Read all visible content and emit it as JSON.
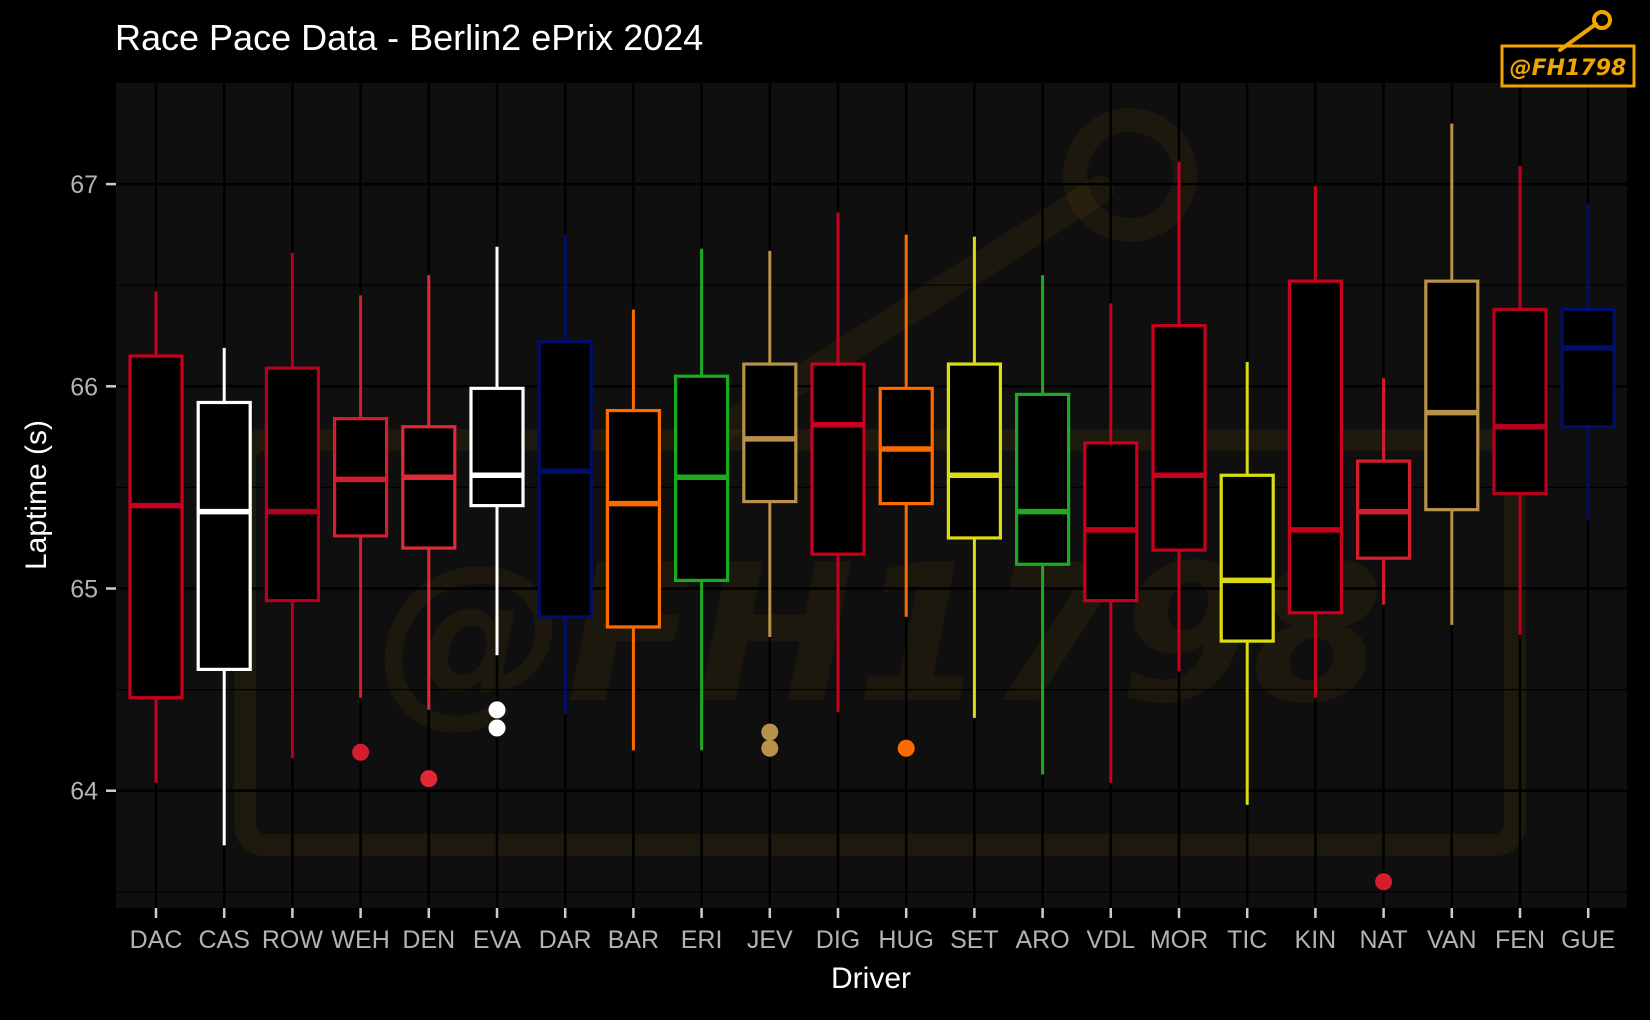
{
  "chart_data": {
    "type": "box",
    "title": "Race Pace Data - Berlin2 ePrix 2024",
    "xlabel": "Driver",
    "ylabel": "Laptime (s)",
    "ylim": [
      63.42,
      67.5
    ],
    "yticks": [
      64,
      65,
      66,
      67
    ],
    "grid": true,
    "legend": "none",
    "watermark": "@FH1798",
    "colors": {
      "background": "#000000",
      "panel": "#0f0f0f",
      "grid": "#000000",
      "tick_text": "#b3b3b3",
      "text": "#ffffff",
      "watermark": "#f0a500"
    },
    "categories": [
      "DAC",
      "CAS",
      "ROW",
      "WEH",
      "DEN",
      "EVA",
      "DAR",
      "BAR",
      "ERI",
      "JEV",
      "DIG",
      "HUG",
      "SET",
      "ARO",
      "VDL",
      "MOR",
      "TIC",
      "KIN",
      "NAT",
      "VAN",
      "FEN",
      "GUE"
    ],
    "boxes": [
      {
        "driver": "DAC",
        "color": "#c8001e",
        "min": 64.04,
        "q1": 64.46,
        "median": 65.41,
        "q3": 66.15,
        "max": 66.47,
        "outliers": []
      },
      {
        "driver": "CAS",
        "color": "#ffffff",
        "min": 63.73,
        "q1": 64.6,
        "median": 65.38,
        "q3": 65.92,
        "max": 66.19,
        "outliers": []
      },
      {
        "driver": "ROW",
        "color": "#b5001e",
        "min": 64.16,
        "q1": 64.94,
        "median": 65.38,
        "q3": 66.09,
        "max": 66.66,
        "outliers": []
      },
      {
        "driver": "WEH",
        "color": "#d41e2e",
        "min": 64.46,
        "q1": 65.26,
        "median": 65.54,
        "q3": 65.84,
        "max": 66.45,
        "outliers": [
          64.19
        ]
      },
      {
        "driver": "DEN",
        "color": "#e02a36",
        "min": 64.4,
        "q1": 65.2,
        "median": 65.55,
        "q3": 65.8,
        "max": 66.55,
        "outliers": [
          64.06
        ]
      },
      {
        "driver": "EVA",
        "color": "#ffffff",
        "min": 64.67,
        "q1": 65.41,
        "median": 65.56,
        "q3": 65.99,
        "max": 66.69,
        "outliers": [
          64.4,
          64.31
        ]
      },
      {
        "driver": "DAR",
        "color": "#000e6b",
        "min": 64.38,
        "q1": 64.86,
        "median": 65.58,
        "q3": 66.22,
        "max": 66.75,
        "outliers": []
      },
      {
        "driver": "BAR",
        "color": "#ff6a00",
        "min": 64.2,
        "q1": 64.81,
        "median": 65.42,
        "q3": 65.88,
        "max": 66.38,
        "outliers": []
      },
      {
        "driver": "ERI",
        "color": "#1eaa1e",
        "min": 64.2,
        "q1": 65.04,
        "median": 65.55,
        "q3": 66.05,
        "max": 66.68,
        "outliers": []
      },
      {
        "driver": "JEV",
        "color": "#b8924a",
        "min": 64.76,
        "q1": 65.43,
        "median": 65.74,
        "q3": 66.11,
        "max": 66.67,
        "outliers": [
          64.29,
          64.21
        ]
      },
      {
        "driver": "DIG",
        "color": "#c8001e",
        "min": 64.39,
        "q1": 65.17,
        "median": 65.81,
        "q3": 66.11,
        "max": 66.86,
        "outliers": []
      },
      {
        "driver": "HUG",
        "color": "#ff6a00",
        "min": 64.86,
        "q1": 65.42,
        "median": 65.69,
        "q3": 65.99,
        "max": 66.75,
        "outliers": [
          64.21
        ]
      },
      {
        "driver": "SET",
        "color": "#dcdc14",
        "min": 64.36,
        "q1": 65.25,
        "median": 65.56,
        "q3": 66.11,
        "max": 66.74,
        "outliers": []
      },
      {
        "driver": "ARO",
        "color": "#1eaa1e",
        "min": 64.08,
        "q1": 65.12,
        "median": 65.38,
        "q3": 65.96,
        "max": 66.55,
        "outliers": []
      },
      {
        "driver": "VDL",
        "color": "#c8001e",
        "min": 64.04,
        "q1": 64.94,
        "median": 65.29,
        "q3": 65.72,
        "max": 66.41,
        "outliers": []
      },
      {
        "driver": "MOR",
        "color": "#c8001e",
        "min": 64.59,
        "q1": 65.19,
        "median": 65.56,
        "q3": 66.3,
        "max": 67.11,
        "outliers": []
      },
      {
        "driver": "TIC",
        "color": "#dcdc14",
        "min": 63.93,
        "q1": 64.74,
        "median": 65.04,
        "q3": 65.56,
        "max": 66.12,
        "outliers": []
      },
      {
        "driver": "KIN",
        "color": "#c8001e",
        "min": 64.46,
        "q1": 64.88,
        "median": 65.29,
        "q3": 66.52,
        "max": 66.99,
        "outliers": []
      },
      {
        "driver": "NAT",
        "color": "#d41e2e",
        "min": 64.92,
        "q1": 65.15,
        "median": 65.38,
        "q3": 65.63,
        "max": 66.04,
        "outliers": [
          63.55
        ]
      },
      {
        "driver": "VAN",
        "color": "#b8924a",
        "min": 64.82,
        "q1": 65.39,
        "median": 65.87,
        "q3": 66.52,
        "max": 67.3,
        "outliers": []
      },
      {
        "driver": "FEN",
        "color": "#b5001e",
        "min": 64.77,
        "q1": 65.47,
        "median": 65.8,
        "q3": 66.38,
        "max": 67.09,
        "outliers": []
      },
      {
        "driver": "GUE",
        "color": "#000e6b",
        "min": 65.34,
        "q1": 65.8,
        "median": 66.19,
        "q3": 66.38,
        "max": 66.9,
        "outliers": []
      }
    ]
  }
}
